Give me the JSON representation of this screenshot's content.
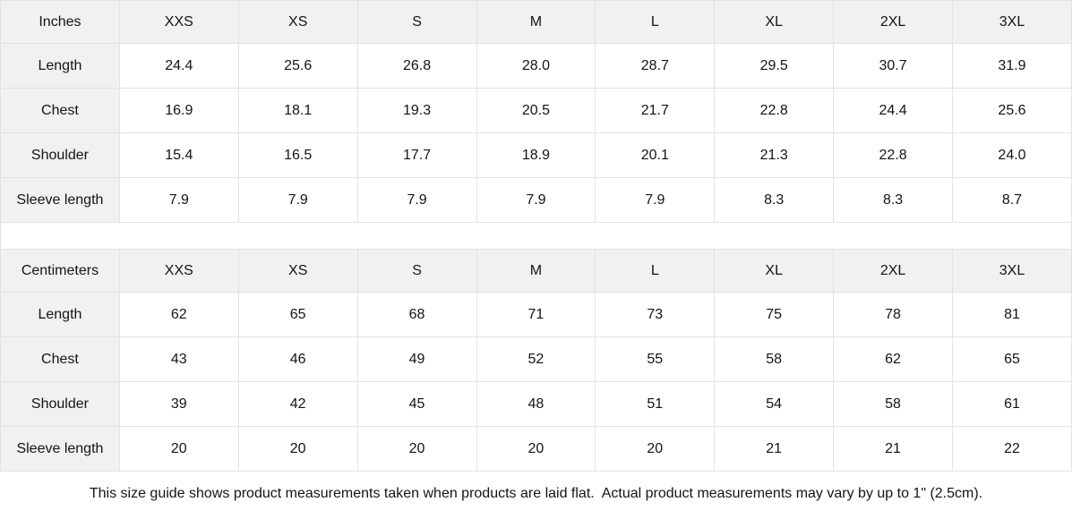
{
  "colors": {
    "header_bg": "#f1f1f1",
    "border": "#e2e2e2",
    "text": "#141414",
    "page_bg": "#ffffff"
  },
  "tables": [
    {
      "unit_label": "Inches",
      "sizes": [
        "XXS",
        "XS",
        "S",
        "M",
        "L",
        "XL",
        "2XL",
        "3XL"
      ],
      "rows": [
        {
          "label": "Length",
          "values": [
            "24.4",
            "25.6",
            "26.8",
            "28.0",
            "28.7",
            "29.5",
            "30.7",
            "31.9"
          ]
        },
        {
          "label": "Chest",
          "values": [
            "16.9",
            "18.1",
            "19.3",
            "20.5",
            "21.7",
            "22.8",
            "24.4",
            "25.6"
          ]
        },
        {
          "label": "Shoulder",
          "values": [
            "15.4",
            "16.5",
            "17.7",
            "18.9",
            "20.1",
            "21.3",
            "22.8",
            "24.0"
          ]
        },
        {
          "label": "Sleeve length",
          "values": [
            "7.9",
            "7.9",
            "7.9",
            "7.9",
            "7.9",
            "8.3",
            "8.3",
            "8.7"
          ]
        }
      ]
    },
    {
      "unit_label": "Centimeters",
      "sizes": [
        "XXS",
        "XS",
        "S",
        "M",
        "L",
        "XL",
        "2XL",
        "3XL"
      ],
      "rows": [
        {
          "label": "Length",
          "values": [
            "62",
            "65",
            "68",
            "71",
            "73",
            "75",
            "78",
            "81"
          ]
        },
        {
          "label": "Chest",
          "values": [
            "43",
            "46",
            "49",
            "52",
            "55",
            "58",
            "62",
            "65"
          ]
        },
        {
          "label": "Shoulder",
          "values": [
            "39",
            "42",
            "45",
            "48",
            "51",
            "54",
            "58",
            "61"
          ]
        },
        {
          "label": "Sleeve length",
          "values": [
            "20",
            "20",
            "20",
            "20",
            "20",
            "21",
            "21",
            "22"
          ]
        }
      ]
    }
  ],
  "footer": {
    "note": "This size guide shows product measurements taken when products are laid flat.  Actual product measurements may vary by up to 1\" (2.5cm)."
  }
}
